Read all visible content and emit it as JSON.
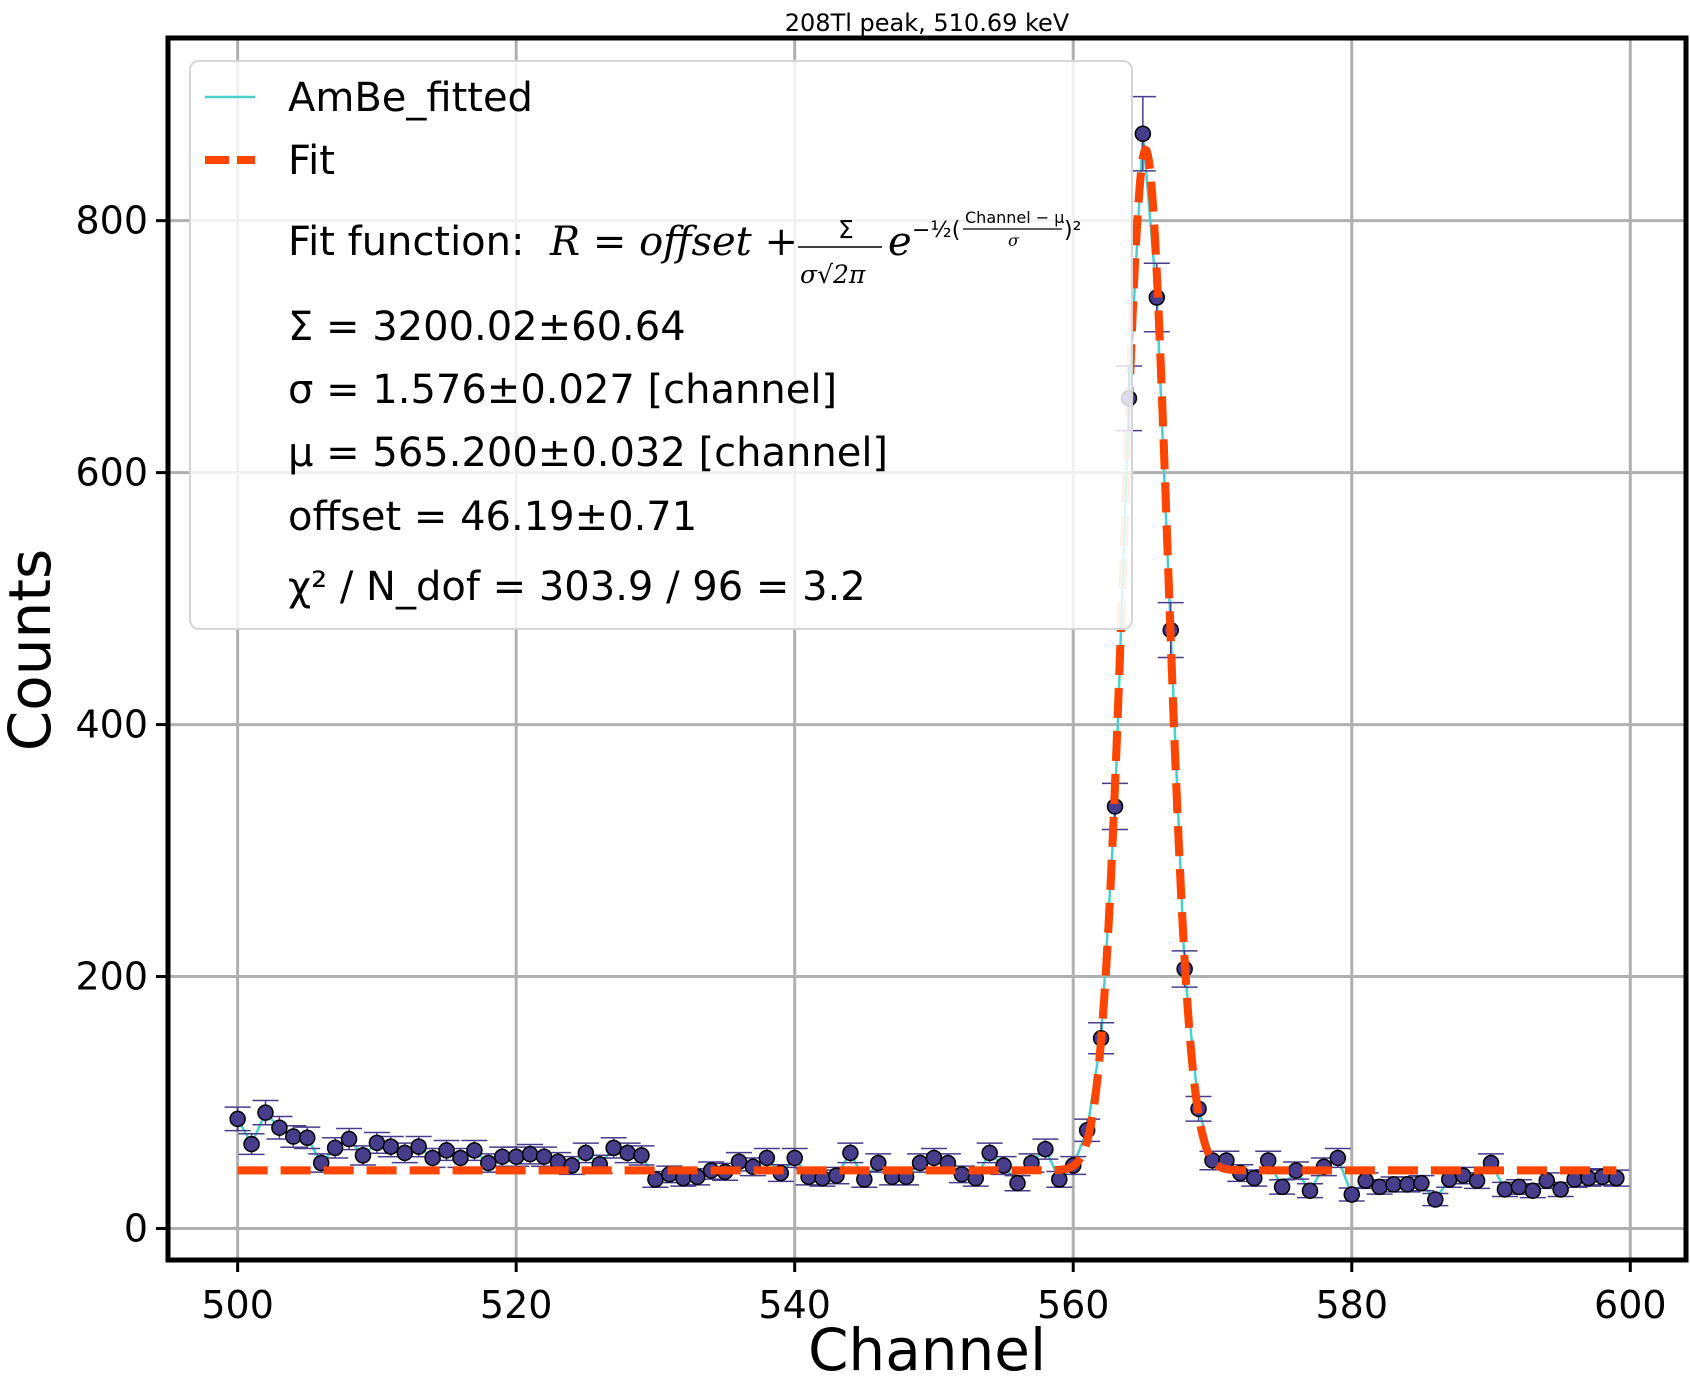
{
  "chart_data": {
    "type": "scatter",
    "title": "208Tl peak, 510.69 keV",
    "xlabel": "Channel",
    "ylabel": "Counts",
    "xlim": [
      495,
      604
    ],
    "ylim": [
      -25,
      945
    ],
    "xticks": [
      500,
      520,
      540,
      560,
      580,
      600
    ],
    "yticks": [
      0,
      200,
      400,
      600,
      800
    ],
    "xtick_labels": [
      "500",
      "520",
      "540",
      "560",
      "580",
      "600"
    ],
    "ytick_labels": [
      "0",
      "200",
      "400",
      "600",
      "800"
    ],
    "grid": true,
    "legend_position": "top-left",
    "colors": {
      "data_line": "#48d1cc",
      "markers": "#483d8b",
      "fit": "#ff4500",
      "grid": "#b0b0b0"
    },
    "series": [
      {
        "name": "AmBe_fitted",
        "kind": "data-with-errorbars",
        "x": [
          500,
          501,
          502,
          503,
          504,
          505,
          506,
          507,
          508,
          509,
          510,
          511,
          512,
          513,
          514,
          515,
          516,
          517,
          518,
          519,
          520,
          521,
          522,
          523,
          524,
          525,
          526,
          527,
          528,
          529,
          530,
          531,
          532,
          533,
          534,
          535,
          536,
          537,
          538,
          539,
          540,
          541,
          542,
          543,
          544,
          545,
          546,
          547,
          548,
          549,
          550,
          551,
          552,
          553,
          554,
          555,
          556,
          557,
          558,
          559,
          560,
          561,
          562,
          563,
          564,
          565,
          566,
          567,
          568,
          569,
          570,
          571,
          572,
          573,
          574,
          575,
          576,
          577,
          578,
          579,
          580,
          581,
          582,
          583,
          584,
          585,
          586,
          587,
          588,
          589,
          590,
          591,
          592,
          593,
          594,
          595,
          596,
          597,
          598,
          599
        ],
        "y": [
          87,
          67,
          92,
          80,
          73,
          72,
          52,
          64,
          71,
          58,
          68,
          65,
          60,
          65,
          56,
          62,
          56,
          62,
          52,
          57,
          57,
          59,
          57,
          53,
          50,
          60,
          51,
          64,
          60,
          58,
          39,
          43,
          40,
          41,
          46,
          45,
          53,
          49,
          56,
          44,
          56,
          41,
          40,
          42,
          60,
          39,
          52,
          41,
          41,
          52,
          56,
          52,
          43,
          40,
          60,
          50,
          36,
          52,
          63,
          39,
          50,
          78,
          151,
          335,
          659,
          869,
          739,
          475,
          206,
          95,
          54,
          54,
          44,
          40,
          54,
          33,
          46,
          30,
          49,
          56,
          27,
          38,
          33,
          35,
          35,
          36,
          23,
          39,
          42,
          38,
          52,
          31,
          33,
          30,
          38,
          31,
          39,
          40,
          41,
          40
        ]
      },
      {
        "name": "Fit",
        "kind": "gaussian-fit",
        "function": "offset + Sigma/(sigma*sqrt(2*pi)) * exp(-0.5*((Channel-mu)/sigma)^2)",
        "params": {
          "Sigma": 3200.02,
          "sigma": 1.576,
          "mu": 565.2,
          "offset": 46.19
        },
        "x_range": [
          500,
          599
        ]
      }
    ],
    "legend": {
      "entries": [
        "AmBe_fitted",
        "Fit"
      ],
      "fit_function_prefix": "Fit function: ",
      "fit_function_formula": "R = offset + Σ / (σ√(2π)) · e^(−½((Channel − μ)/σ)²)",
      "sigma_sum": "Σ = 3200.02±60.64",
      "sigma_width": "σ = 1.576±0.027 [channel]",
      "mu": "μ = 565.200±0.032 [channel]",
      "offset": "offset = 46.19±0.71",
      "chi2": "χ² / N_dof = 303.9 / 96 = 3.2"
    }
  }
}
